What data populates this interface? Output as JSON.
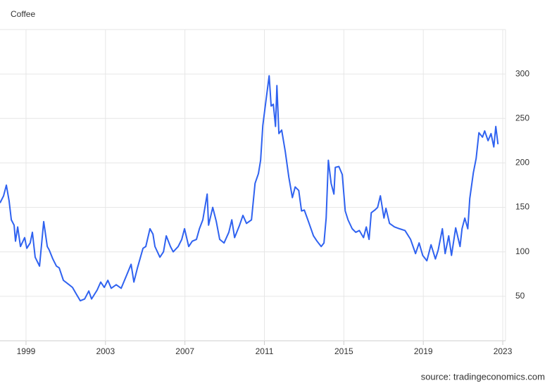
{
  "chart_data": {
    "type": "line",
    "title": "Coffee",
    "source": "source: tradingeconomics.com",
    "xlim": [
      1997.69,
      2023.14
    ],
    "xticks": [
      1999,
      2003,
      2007,
      2011,
      2015,
      2019,
      2023
    ],
    "ylim": [
      0,
      350
    ],
    "yticks": [
      50,
      100,
      150,
      200,
      250,
      300
    ],
    "grid": true,
    "x": [
      1997.69,
      1997.87,
      1998.01,
      1998.15,
      1998.26,
      1998.4,
      1998.47,
      1998.58,
      1998.72,
      1998.93,
      1999.04,
      1999.21,
      1999.32,
      1999.46,
      1999.68,
      1999.89,
      2000.07,
      2000.17,
      2000.35,
      2000.53,
      2000.67,
      2000.88,
      2001.17,
      2001.34,
      2001.52,
      2001.73,
      2001.95,
      2002.16,
      2002.3,
      2002.58,
      2002.76,
      2002.94,
      2003.12,
      2003.29,
      2003.54,
      2003.79,
      2004.07,
      2004.29,
      2004.43,
      2004.61,
      2004.89,
      2005.03,
      2005.24,
      2005.39,
      2005.49,
      2005.74,
      2005.92,
      2006.06,
      2006.27,
      2006.41,
      2006.66,
      2006.84,
      2006.98,
      2007.19,
      2007.37,
      2007.58,
      2007.73,
      2007.9,
      2008.12,
      2008.19,
      2008.4,
      2008.58,
      2008.75,
      2008.97,
      2009.21,
      2009.36,
      2009.5,
      2009.75,
      2009.92,
      2010.1,
      2010.35,
      2010.53,
      2010.7,
      2010.81,
      2010.92,
      2011.09,
      2011.24,
      2011.34,
      2011.45,
      2011.56,
      2011.63,
      2011.73,
      2011.87,
      2012.05,
      2012.23,
      2012.41,
      2012.55,
      2012.73,
      2012.87,
      2013.01,
      2013.22,
      2013.47,
      2013.65,
      2013.86,
      2014.0,
      2014.11,
      2014.22,
      2014.36,
      2014.5,
      2014.57,
      2014.75,
      2014.92,
      2015.07,
      2015.21,
      2015.42,
      2015.6,
      2015.78,
      2015.99,
      2016.13,
      2016.27,
      2016.38,
      2016.56,
      2016.7,
      2016.84,
      2017.02,
      2017.12,
      2017.3,
      2017.55,
      2017.8,
      2018.08,
      2018.36,
      2018.61,
      2018.79,
      2018.97,
      2019.18,
      2019.39,
      2019.61,
      2019.75,
      2019.96,
      2020.1,
      2020.28,
      2020.42,
      2020.63,
      2020.85,
      2020.95,
      2021.09,
      2021.24,
      2021.34,
      2021.52,
      2021.66,
      2021.8,
      2021.98,
      2022.09,
      2022.26,
      2022.41,
      2022.55,
      2022.65,
      2022.76
    ],
    "series": [
      {
        "name": "Coffee",
        "color": "#2f62f0",
        "values": [
          155,
          163,
          175,
          157,
          136,
          130,
          112,
          128,
          106,
          116,
          104,
          110,
          122,
          94,
          84,
          134,
          106,
          102,
          92,
          84,
          82,
          68,
          63,
          60,
          53,
          45,
          47,
          56,
          47,
          57,
          66,
          60,
          68,
          59,
          63,
          59,
          74,
          86,
          66,
          82,
          104,
          106,
          126,
          120,
          106,
          94,
          100,
          118,
          106,
          100,
          106,
          114,
          126,
          106,
          112,
          114,
          126,
          136,
          165,
          130,
          150,
          134,
          114,
          110,
          122,
          136,
          116,
          130,
          141,
          132,
          136,
          177,
          188,
          203,
          242,
          272,
          298,
          264,
          266,
          241,
          287,
          233,
          237,
          213,
          184,
          161,
          173,
          169,
          146,
          147,
          134,
          118,
          112,
          106,
          110,
          138,
          203,
          177,
          165,
          195,
          196,
          187,
          146,
          136,
          126,
          122,
          124,
          116,
          128,
          114,
          144,
          147,
          150,
          163,
          138,
          149,
          132,
          128,
          126,
          124,
          114,
          98,
          110,
          96,
          90,
          108,
          92,
          102,
          126,
          98,
          118,
          96,
          127,
          106,
          126,
          138,
          126,
          160,
          189,
          205,
          234,
          229,
          236,
          225,
          233,
          218,
          241,
          221
        ]
      }
    ]
  }
}
